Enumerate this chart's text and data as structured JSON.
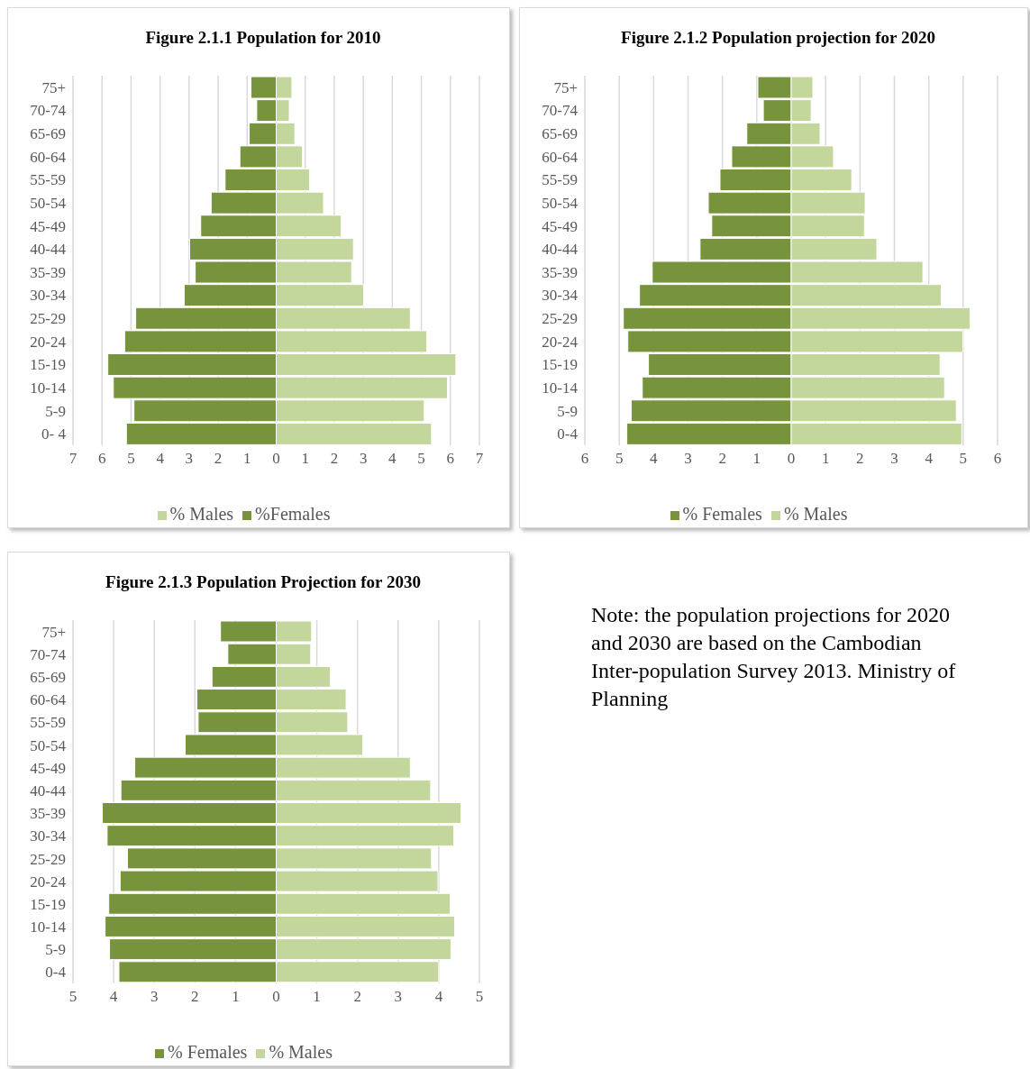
{
  "chart_data": [
    {
      "type": "bar",
      "title": "Figure 2.1.1 Population for 2010",
      "orientation": "horizontal",
      "stacked": true,
      "categories": [
        "75+",
        "70-74",
        "65-69",
        "60-64",
        "55-59",
        "50-54",
        "45-49",
        "40-44",
        "35-39",
        "30-34",
        "25-29",
        "20-24",
        "15-19",
        "10-14",
        "5-9",
        "0- 4"
      ],
      "series": [
        {
          "name": "%Females",
          "color": "#77933c",
          "values": [
            -0.87,
            -0.67,
            -0.93,
            -1.25,
            -1.76,
            -2.24,
            -2.6,
            -2.98,
            -2.79,
            -3.17,
            -4.84,
            -5.22,
            -5.8,
            -5.61,
            -4.9,
            -5.16
          ]
        },
        {
          "name": "% Males",
          "color": "#c3d69b",
          "values": [
            0.54,
            0.45,
            0.64,
            0.9,
            1.15,
            1.63,
            2.24,
            2.66,
            2.6,
            3.01,
            4.62,
            5.19,
            6.19,
            5.9,
            5.1,
            5.35
          ]
        }
      ],
      "xlim": [
        -7,
        7
      ],
      "xticks": [
        {
          "value": -7,
          "label": "7"
        },
        {
          "value": -6,
          "label": "6"
        },
        {
          "value": -5,
          "label": "5"
        },
        {
          "value": -4,
          "label": "4"
        },
        {
          "value": -3,
          "label": "3"
        },
        {
          "value": -2,
          "label": "2"
        },
        {
          "value": -1,
          "label": "1"
        },
        0,
        1,
        2,
        3,
        4,
        5,
        6,
        7
      ],
      "grid": "x",
      "legend": "bottom"
    },
    {
      "type": "bar",
      "title": "Figure 2.1.2 Population projection for 2020",
      "orientation": "horizontal",
      "stacked": true,
      "categories": [
        "75+",
        "70-74",
        "65-69",
        "60-64",
        "55-59",
        "50-54",
        "45-49",
        "40-44",
        "35-39",
        "30-34",
        "25-29",
        "20-24",
        "15-19",
        "10-14",
        "5-9",
        "0-4"
      ],
      "series": [
        {
          "name": "% Females",
          "color": "#77933c",
          "values": [
            -0.97,
            -0.81,
            -1.29,
            -1.73,
            -2.07,
            -2.41,
            -2.31,
            -2.65,
            -4.04,
            -4.41,
            -4.88,
            -4.75,
            -4.15,
            -4.33,
            -4.65,
            -4.78
          ]
        },
        {
          "name": "% Males",
          "color": "#c3d69b",
          "values": [
            0.63,
            0.58,
            0.84,
            1.23,
            1.76,
            2.15,
            2.13,
            2.49,
            3.83,
            4.36,
            5.2,
            4.99,
            4.33,
            4.46,
            4.8,
            4.96
          ]
        }
      ],
      "xlim": [
        -6,
        6
      ],
      "xticks": [
        {
          "value": -6,
          "label": "6"
        },
        {
          "value": -5,
          "label": "5"
        },
        {
          "value": -4,
          "label": "4"
        },
        {
          "value": -3,
          "label": "3"
        },
        {
          "value": -2,
          "label": "2"
        },
        {
          "value": -1,
          "label": "1"
        },
        0,
        1,
        2,
        3,
        4,
        5,
        6
      ],
      "grid": "x",
      "legend": "bottom"
    },
    {
      "type": "bar",
      "title": "Figure 2.1.3 Population Projection for 2030",
      "orientation": "horizontal",
      "stacked": true,
      "categories": [
        "75+",
        "70-74",
        "65-69",
        "60-64",
        "55-59",
        "50-54",
        "45-49",
        "40-44",
        "35-39",
        "30-34",
        "25-29",
        "20-24",
        "15-19",
        "10-14",
        "5-9",
        "0-4"
      ],
      "series": [
        {
          "name": "% Females",
          "color": "#77933c",
          "values": [
            -1.37,
            -1.19,
            -1.58,
            -1.95,
            -1.92,
            -2.24,
            -3.48,
            -3.82,
            -4.28,
            -4.16,
            -3.66,
            -3.84,
            -4.12,
            -4.21,
            -4.1,
            -3.87
          ]
        },
        {
          "name": "% Males",
          "color": "#c3d69b",
          "values": [
            0.87,
            0.85,
            1.33,
            1.72,
            1.76,
            2.13,
            3.3,
            3.8,
            4.55,
            4.37,
            3.82,
            3.98,
            4.28,
            4.39,
            4.3,
            4.0
          ]
        }
      ],
      "xlim": [
        -5,
        5
      ],
      "xticks": [
        {
          "value": -5,
          "label": "5"
        },
        {
          "value": -4,
          "label": "4"
        },
        {
          "value": -3,
          "label": "3"
        },
        {
          "value": -2,
          "label": "2"
        },
        {
          "value": -1,
          "label": "1"
        },
        0,
        1,
        2,
        3,
        4,
        5
      ],
      "grid": "x",
      "legend": "bottom"
    },
    {
      "type": "other",
      "annotations": [
        "Note: the population projections for 2020 and 2030 are based on the Cambodian Inter-population Survey 2013. Ministry of Planning"
      ]
    }
  ]
}
